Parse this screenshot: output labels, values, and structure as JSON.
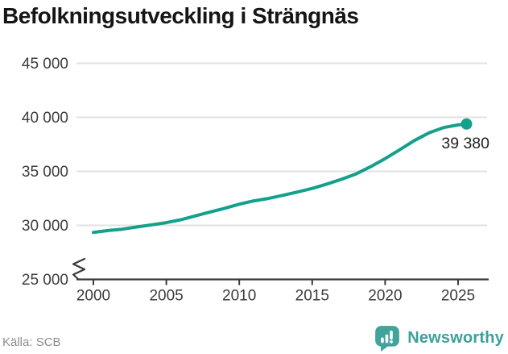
{
  "header": {
    "title": "Befolkningsutveckling i Strängnäs"
  },
  "footer": {
    "source_label": "Källa: SCB",
    "brand_name": "Newsworthy",
    "brand_icon": "bar-chart-speech-bubble"
  },
  "colors": {
    "line": "#14a08c",
    "marker": "#14a08c",
    "grid": "#e2e2e2",
    "axis": "#3a3a3a",
    "tick_label": "#3c3c3c",
    "annotation_text": "#232323",
    "title_text": "#151515",
    "source_text": "#8d8d8d",
    "logo_teal": "#42a39c"
  },
  "chart_data": {
    "type": "line",
    "title": "Befolkningsutveckling i Strängnäs",
    "x": [
      2000,
      2001,
      2002,
      2003,
      2004,
      2005,
      2006,
      2007,
      2008,
      2009,
      2010,
      2011,
      2012,
      2013,
      2014,
      2015,
      2016,
      2017,
      2018,
      2019,
      2020,
      2021,
      2022,
      2023,
      2024,
      2025,
      2025.58
    ],
    "values": [
      29350,
      29520,
      29650,
      29860,
      30050,
      30250,
      30520,
      30880,
      31240,
      31580,
      31960,
      32270,
      32490,
      32780,
      33090,
      33420,
      33820,
      34260,
      34760,
      35430,
      36180,
      37000,
      37850,
      38560,
      39050,
      39300,
      39380
    ],
    "end_value": 39380,
    "end_label": "39 380",
    "xlabel": "",
    "ylabel": "",
    "xticks": [
      {
        "v": 2000,
        "label": "2000"
      },
      {
        "v": 2005,
        "label": "2005"
      },
      {
        "v": 2010,
        "label": "2010"
      },
      {
        "v": 2015,
        "label": "2015"
      },
      {
        "v": 2020,
        "label": "2020"
      },
      {
        "v": 2025,
        "label": "2025"
      }
    ],
    "yticks": [
      {
        "v": 25000,
        "label": "25 000"
      },
      {
        "v": 30000,
        "label": "30 000"
      },
      {
        "v": 35000,
        "label": "35 000"
      },
      {
        "v": 40000,
        "label": "40 000"
      },
      {
        "v": 45000,
        "label": "45 000"
      }
    ],
    "ylim": [
      25000,
      45000
    ],
    "xlim": [
      2000,
      2025.58
    ],
    "grid": true,
    "axis_break_low": true,
    "legend": "none"
  }
}
